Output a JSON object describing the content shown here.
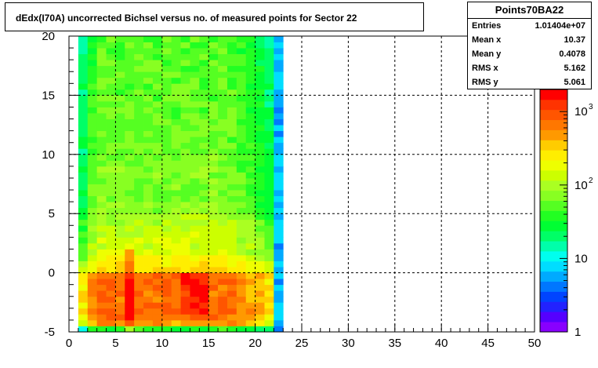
{
  "chart_data": {
    "type": "heatmap",
    "title": "dEdx(I70A) uncorrected Bichsel versus no. of measured points for Sector 22",
    "xlabel": "",
    "ylabel": "",
    "xlim": [
      0,
      50
    ],
    "ylim": [
      -5,
      20
    ],
    "x_ticks": [
      "0",
      "5",
      "10",
      "15",
      "20",
      "25",
      "30",
      "35",
      "40",
      "45",
      "50"
    ],
    "y_ticks": [
      "-5",
      "0",
      "5",
      "10",
      "15",
      "20"
    ],
    "grid": true,
    "z_scale": "log",
    "z_range": [
      1,
      2000
    ],
    "z_ticks": [
      {
        "value": 1,
        "base": "1",
        "exp": ""
      },
      {
        "value": 10,
        "base": "10",
        "exp": ""
      },
      {
        "value": 100,
        "base": "10",
        "exp": "2"
      },
      {
        "value": 1000,
        "base": "10",
        "exp": "3"
      }
    ],
    "x_bins": {
      "start": 1,
      "end": 23,
      "width": 1
    },
    "y_bins": {
      "start": -5,
      "end": 20,
      "width": 0.5
    },
    "cells": [
      {
        "x": [
          1,
          2
        ],
        "y": [
          -5,
          20
        ],
        "profile": "edge"
      },
      {
        "x": [
          2,
          22
        ],
        "y": [
          -5,
          20
        ],
        "profile": "main"
      },
      {
        "x": [
          22,
          23
        ],
        "y": [
          -5,
          20
        ],
        "profile": "tail"
      }
    ]
  },
  "stats": {
    "name": "Points70BA22",
    "rows": [
      {
        "label": "Entries",
        "value": "1.01404e+07"
      },
      {
        "label": "Mean x",
        "value": "10.37"
      },
      {
        "label": "Mean y",
        "value": "0.4078"
      },
      {
        "label": "RMS x",
        "value": "5.162"
      },
      {
        "label": "RMS y",
        "value": "5.061"
      }
    ]
  }
}
